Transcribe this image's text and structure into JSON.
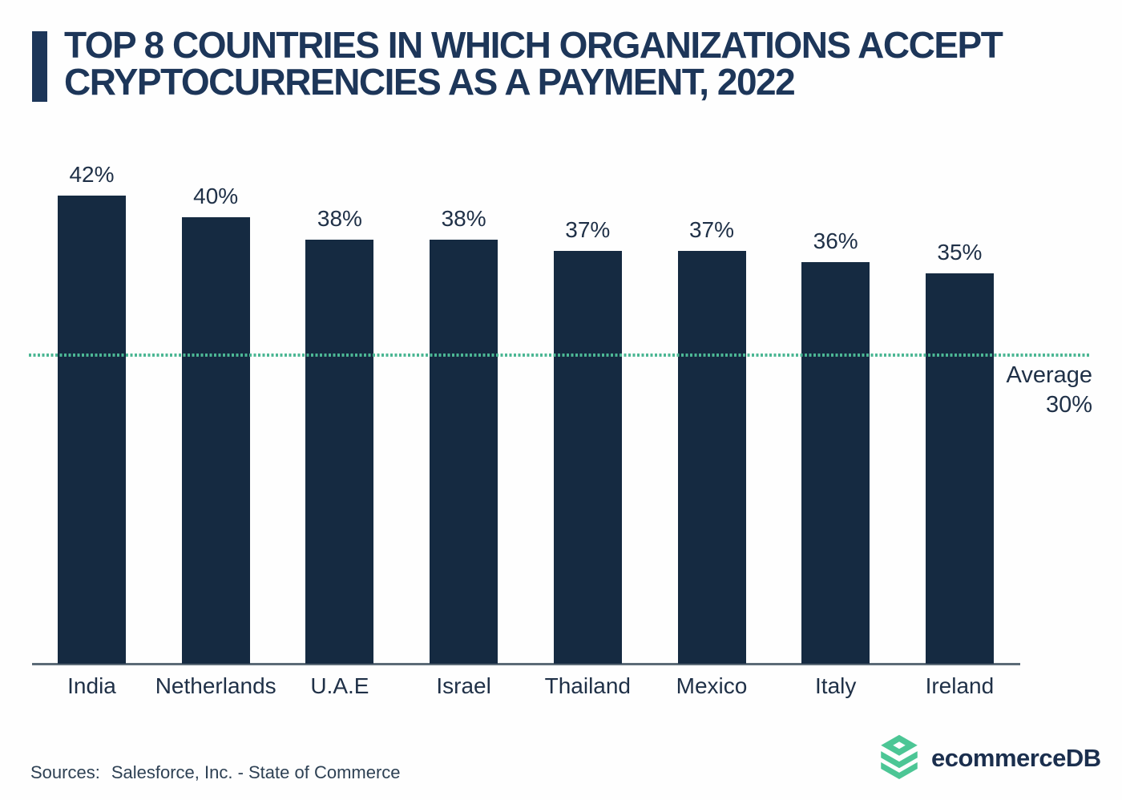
{
  "header": {
    "title_line1": "TOP 8 COUNTRIES IN WHICH ORGANIZATIONS ACCEPT",
    "title_line2": "CRYPTOCURRENCIES AS A PAYMENT, 2022"
  },
  "chart_data": {
    "type": "bar",
    "title": "TOP 8 COUNTRIES IN WHICH ORGANIZATIONS ACCEPT CRYPTOCURRENCIES AS A PAYMENT, 2022",
    "categories": [
      "India",
      "Netherlands",
      "U.A.E",
      "Israel",
      "Thailand",
      "Mexico",
      "Italy",
      "Ireland"
    ],
    "values": [
      42,
      40,
      38,
      38,
      37,
      37,
      36,
      35
    ],
    "value_suffix": "%",
    "xlabel": "",
    "ylabel": "",
    "ylim": [
      0,
      46
    ],
    "grid": false,
    "legend": "none",
    "bar_color": "#152a41",
    "average_line": {
      "value": 30,
      "label": "Average",
      "value_label": "30%",
      "style": "dotted",
      "color": "#4cb794"
    }
  },
  "footer": {
    "source_prefix": "Sources:",
    "source_text": "Salesforce, Inc. - State of Commerce"
  },
  "branding": {
    "name": "ecommerceDB",
    "icon": "stacked-layers-icon",
    "icon_color": "#4cc695",
    "text_color": "#1b2f4e"
  }
}
